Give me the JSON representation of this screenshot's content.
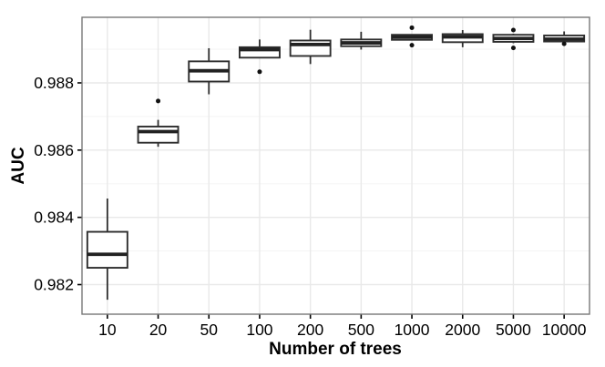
{
  "chart_data": {
    "type": "boxplot",
    "title": "",
    "xlabel": "Number of trees",
    "ylabel": "AUC",
    "categories": [
      "10",
      "20",
      "50",
      "100",
      "200",
      "500",
      "1000",
      "2000",
      "5000",
      "10000"
    ],
    "y_ticks": [
      0.982,
      0.984,
      0.986,
      0.988
    ],
    "y_tick_labels": [
      "0.982",
      "0.984",
      "0.986",
      "0.988"
    ],
    "y_minor_gridlines": [
      0.983,
      0.985,
      0.987,
      0.989
    ],
    "ylim": [
      0.98112,
      0.98995
    ],
    "grid": "major-and-minor",
    "legend": "none",
    "boxes": [
      {
        "category": "10",
        "whisker_low": 0.98155,
        "q1": 0.9825,
        "median": 0.9829,
        "q3": 0.98357,
        "whisker_high": 0.98456,
        "outliers": []
      },
      {
        "category": "20",
        "whisker_low": 0.9861,
        "q1": 0.98622,
        "median": 0.98655,
        "q3": 0.9867,
        "whisker_high": 0.9869,
        "outliers": [
          0.98746
        ]
      },
      {
        "category": "50",
        "whisker_low": 0.98766,
        "q1": 0.98804,
        "median": 0.98836,
        "q3": 0.98864,
        "whisker_high": 0.98903,
        "outliers": []
      },
      {
        "category": "100",
        "whisker_low": 0.98875,
        "q1": 0.98875,
        "median": 0.98899,
        "q3": 0.98906,
        "whisker_high": 0.98929,
        "outliers": [
          0.98833
        ]
      },
      {
        "category": "200",
        "whisker_low": 0.98856,
        "q1": 0.9888,
        "median": 0.98914,
        "q3": 0.98926,
        "whisker_high": 0.98958,
        "outliers": []
      },
      {
        "category": "500",
        "whisker_low": 0.98899,
        "q1": 0.98909,
        "median": 0.98919,
        "q3": 0.98929,
        "whisker_high": 0.98952,
        "outliers": []
      },
      {
        "category": "1000",
        "whisker_low": 0.98928,
        "q1": 0.98928,
        "median": 0.98936,
        "q3": 0.98943,
        "whisker_high": 0.98943,
        "outliers": [
          0.98964,
          0.98912
        ]
      },
      {
        "category": "2000",
        "whisker_low": 0.98906,
        "q1": 0.98921,
        "median": 0.98937,
        "q3": 0.98945,
        "whisker_high": 0.98957,
        "outliers": []
      },
      {
        "category": "5000",
        "whisker_low": 0.98918,
        "q1": 0.98922,
        "median": 0.98932,
        "q3": 0.98943,
        "whisker_high": 0.98946,
        "outliers": [
          0.98957,
          0.98904
        ]
      },
      {
        "category": "10000",
        "whisker_low": 0.98923,
        "q1": 0.98923,
        "median": 0.9893,
        "q3": 0.98941,
        "whisker_high": 0.98953,
        "outliers": [
          0.98916
        ]
      }
    ]
  },
  "style": {
    "background": "#ffffff",
    "panel_background": "#ffffff",
    "panel_border": "#777777",
    "grid_major": "#e9e9e9",
    "grid_minor": "#f5f5f5",
    "box_stroke": "#2e2e2e",
    "box_fill": "#ffffff",
    "median_stroke": "#222222",
    "outlier_color": "#111111",
    "tick_color": "#000000",
    "text_color": "#000000"
  }
}
